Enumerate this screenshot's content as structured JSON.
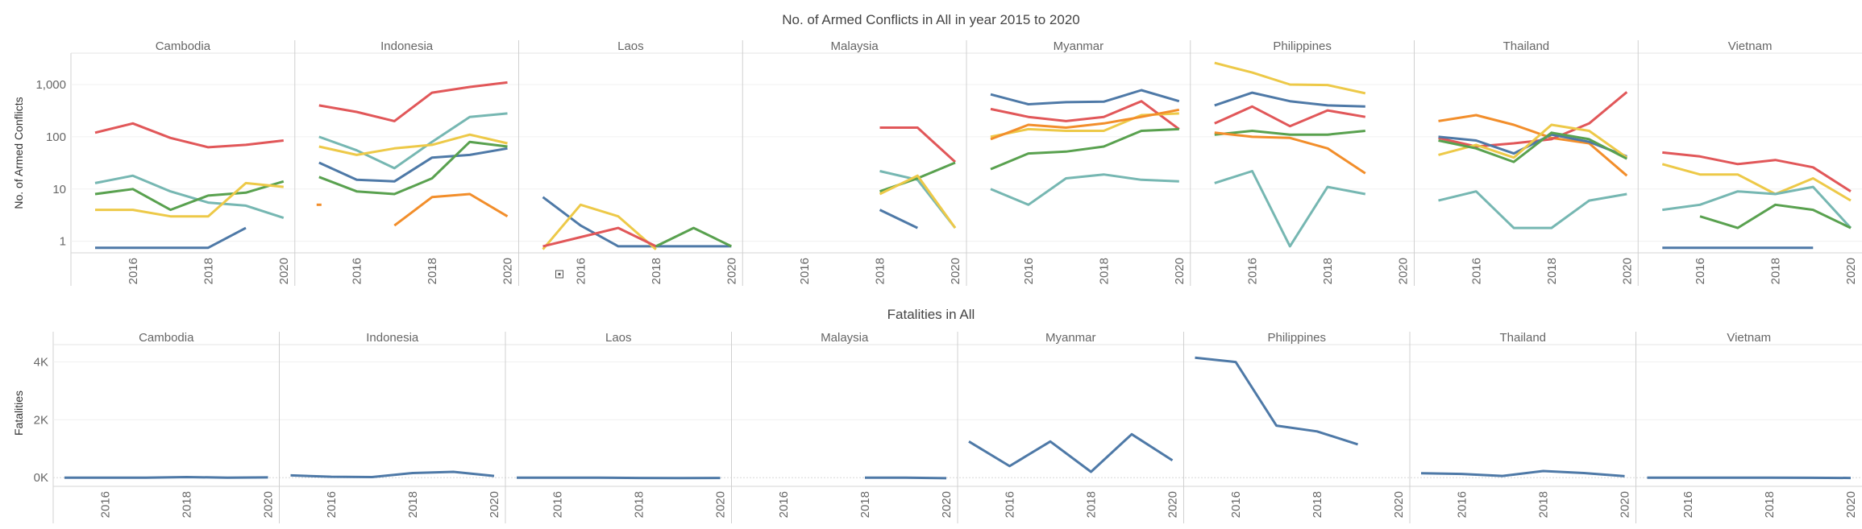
{
  "chart_data": [
    {
      "type": "line",
      "title": "No. of Armed Conflicts in All in year 2015 to 2020",
      "ylabel": "No. of Armed Conflicts",
      "yscale": "log",
      "yticks": [
        "1",
        "10",
        "100",
        "1,000"
      ],
      "xticks": [
        "2016",
        "2018",
        "2020"
      ],
      "x": [
        2015,
        2016,
        2017,
        2018,
        2019,
        2020
      ],
      "xlim": [
        2015,
        2020
      ],
      "colors": {
        "red": "#e15759",
        "yellow": "#edc948",
        "teal": "#76b7b2",
        "blue": "#4e79a7",
        "green": "#59a14f",
        "orange": "#f28e2b"
      },
      "panels": [
        {
          "name": "Cambodia",
          "series": [
            {
              "color": "red",
              "values": [
                120,
                180,
                95,
                63,
                70,
                85
              ]
            },
            {
              "color": "teal",
              "values": [
                13,
                18,
                9,
                5.5,
                4.8,
                2.8
              ]
            },
            {
              "color": "green",
              "values": [
                8,
                10,
                4,
                7.5,
                8.5,
                14
              ]
            },
            {
              "color": "yellow",
              "values": [
                4,
                4,
                3,
                3,
                13,
                11
              ]
            },
            {
              "color": "blue",
              "values": [
                0.75,
                0.75,
                0.75,
                0.75,
                1.8,
                null
              ]
            }
          ]
        },
        {
          "name": "Indonesia",
          "series": [
            {
              "color": "red",
              "values": [
                400,
                300,
                200,
                700,
                900,
                1100
              ]
            },
            {
              "color": "teal",
              "values": [
                100,
                55,
                25,
                80,
                240,
                280
              ]
            },
            {
              "color": "yellow",
              "values": [
                65,
                45,
                60,
                70,
                110,
                75
              ]
            },
            {
              "color": "blue",
              "values": [
                32,
                15,
                14,
                40,
                45,
                60
              ]
            },
            {
              "color": "green",
              "values": [
                17,
                9,
                8,
                16,
                80,
                65
              ]
            },
            {
              "color": "orange",
              "values": [
                5,
                null,
                2,
                7,
                8,
                3
              ]
            }
          ]
        },
        {
          "name": "Laos",
          "series": [
            {
              "color": "blue",
              "values": [
                7,
                2,
                0.8,
                0.8,
                0.8,
                0.8
              ]
            },
            {
              "color": "yellow",
              "values": [
                0.7,
                5,
                3,
                0.7,
                null,
                null
              ]
            },
            {
              "color": "red",
              "values": [
                0.8,
                1.2,
                1.8,
                0.8,
                null,
                null
              ]
            },
            {
              "color": "green",
              "values": [
                null,
                null,
                null,
                0.8,
                1.8,
                0.8
              ]
            }
          ]
        },
        {
          "name": "Malaysia",
          "series": [
            {
              "color": "red",
              "values": [
                null,
                null,
                null,
                150,
                150,
                33
              ]
            },
            {
              "color": "teal",
              "values": [
                null,
                null,
                null,
                22,
                15,
                1.8
              ]
            },
            {
              "color": "green",
              "values": [
                null,
                null,
                null,
                9,
                16,
                32
              ]
            },
            {
              "color": "yellow",
              "values": [
                null,
                null,
                null,
                8,
                18,
                1.8
              ]
            },
            {
              "color": "blue",
              "values": [
                null,
                null,
                null,
                4,
                1.8,
                null
              ]
            }
          ]
        },
        {
          "name": "Myanmar",
          "series": [
            {
              "color": "blue",
              "values": [
                650,
                420,
                460,
                470,
                780,
                480
              ]
            },
            {
              "color": "red",
              "values": [
                340,
                240,
                200,
                240,
                480,
                140
              ]
            },
            {
              "color": "yellow",
              "values": [
                100,
                140,
                130,
                130,
                260,
                280
              ]
            },
            {
              "color": "orange",
              "values": [
                90,
                170,
                150,
                180,
                240,
                330
              ]
            },
            {
              "color": "green",
              "values": [
                24,
                48,
                52,
                65,
                130,
                140
              ]
            },
            {
              "color": "teal",
              "values": [
                10,
                5,
                16,
                19,
                15,
                14
              ]
            }
          ]
        },
        {
          "name": "Philippines",
          "series": [
            {
              "color": "yellow",
              "values": [
                2600,
                1700,
                1000,
                980,
                680,
                null
              ]
            },
            {
              "color": "blue",
              "values": [
                400,
                700,
                480,
                400,
                380,
                null
              ]
            },
            {
              "color": "red",
              "values": [
                180,
                380,
                160,
                320,
                240,
                null
              ]
            },
            {
              "color": "green",
              "values": [
                110,
                130,
                110,
                110,
                130,
                null
              ]
            },
            {
              "color": "orange",
              "values": [
                120,
                100,
                95,
                60,
                20,
                null
              ]
            },
            {
              "color": "teal",
              "values": [
                13,
                22,
                0.8,
                11,
                8,
                null
              ]
            }
          ]
        },
        {
          "name": "Thailand",
          "series": [
            {
              "color": "orange",
              "values": [
                200,
                260,
                170,
                95,
                75,
                18
              ]
            },
            {
              "color": "red",
              "values": [
                95,
                65,
                75,
                90,
                180,
                720
              ]
            },
            {
              "color": "blue",
              "values": [
                100,
                85,
                48,
                110,
                80,
                42
              ]
            },
            {
              "color": "yellow",
              "values": [
                45,
                70,
                40,
                170,
                130,
                40
              ]
            },
            {
              "color": "green",
              "values": [
                85,
                60,
                33,
                120,
                90,
                38
              ]
            },
            {
              "color": "teal",
              "values": [
                6,
                9,
                1.8,
                1.8,
                6,
                8
              ]
            }
          ]
        },
        {
          "name": "Vietnam",
          "series": [
            {
              "color": "red",
              "values": [
                50,
                42,
                30,
                36,
                26,
                9
              ]
            },
            {
              "color": "yellow",
              "values": [
                30,
                19,
                19,
                8,
                16,
                6
              ]
            },
            {
              "color": "teal",
              "values": [
                4,
                5,
                9,
                8,
                11,
                1.8
              ]
            },
            {
              "color": "green",
              "values": [
                null,
                3,
                1.8,
                5,
                4,
                1.8
              ]
            },
            {
              "color": "blue",
              "values": [
                0.75,
                0.75,
                0.75,
                0.75,
                0.75,
                null
              ]
            }
          ]
        }
      ]
    },
    {
      "type": "line",
      "title": "Fatalities in All",
      "ylabel": "Fatalities",
      "yticks": [
        "0K",
        "2K",
        "4K"
      ],
      "ylim": [
        -300,
        4600
      ],
      "xticks": [
        "2016",
        "2018",
        "2020"
      ],
      "x": [
        2015,
        2016,
        2017,
        2018,
        2019,
        2020
      ],
      "xlim": [
        2015,
        2020
      ],
      "color": "#4e79a7",
      "panels": [
        {
          "name": "Cambodia",
          "values": [
            0,
            0,
            0,
            20,
            0,
            10
          ]
        },
        {
          "name": "Indonesia",
          "values": [
            80,
            30,
            20,
            160,
            200,
            60
          ]
        },
        {
          "name": "Laos",
          "values": [
            0,
            0,
            0,
            -10,
            -15,
            -10
          ]
        },
        {
          "name": "Malaysia",
          "values": [
            null,
            null,
            null,
            0,
            0,
            -20
          ]
        },
        {
          "name": "Myanmar",
          "values": [
            1250,
            400,
            1250,
            200,
            1500,
            600
          ]
        },
        {
          "name": "Philippines",
          "values": [
            4150,
            4000,
            1800,
            1600,
            1150,
            null
          ]
        },
        {
          "name": "Thailand",
          "values": [
            150,
            130,
            60,
            230,
            160,
            50
          ]
        },
        {
          "name": "Vietnam",
          "values": [
            0,
            0,
            0,
            0,
            -5,
            -10
          ]
        }
      ]
    }
  ]
}
